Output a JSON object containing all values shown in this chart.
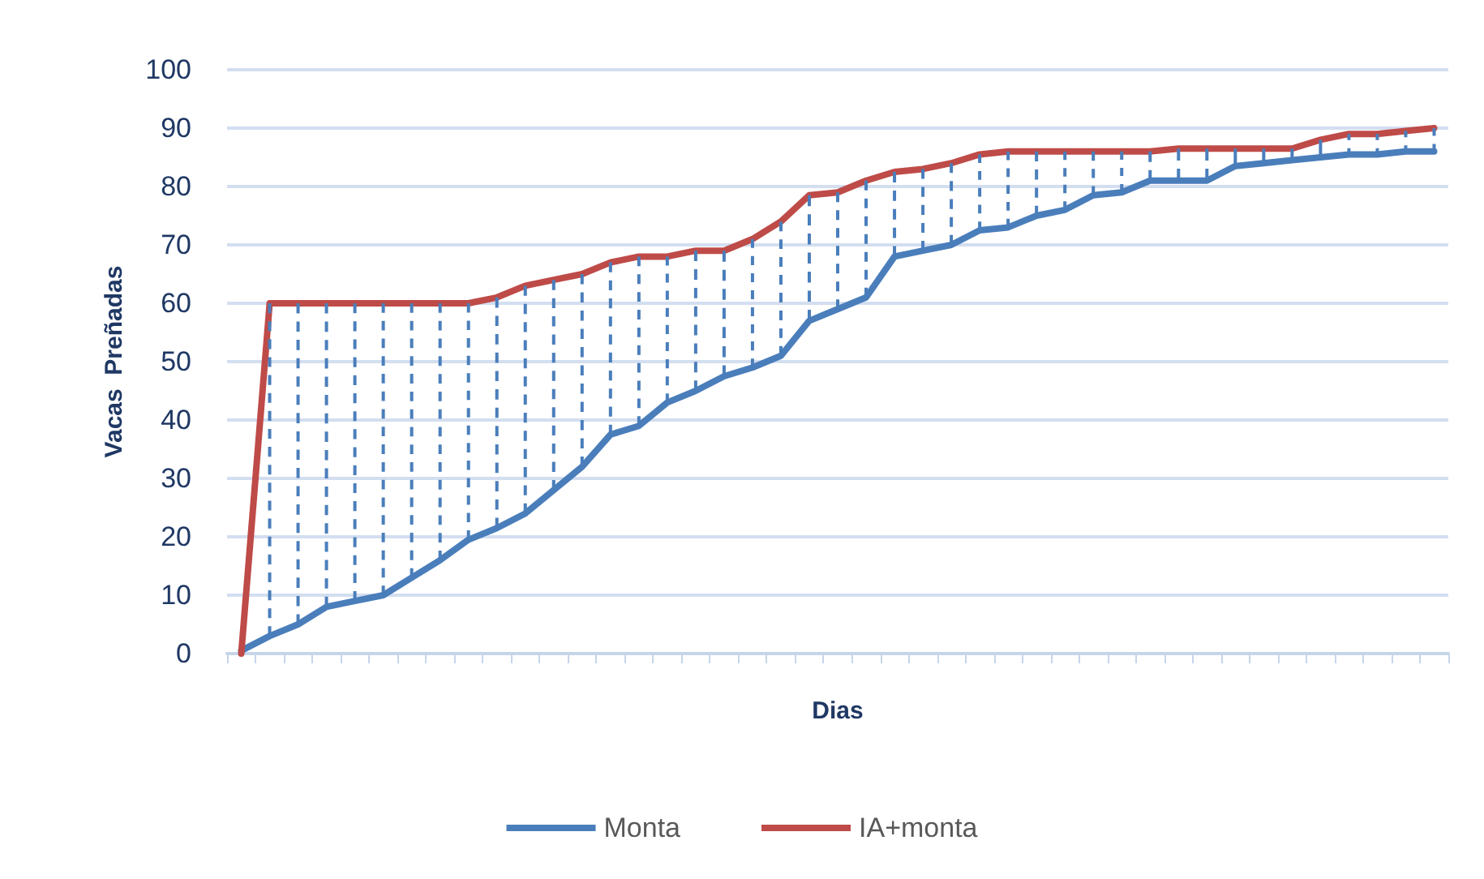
{
  "chart_data": {
    "type": "line",
    "xlabel": "Dias",
    "ylabel": "Vacas  Preñadas",
    "categories": [
      null,
      null,
      null,
      null,
      null,
      null,
      null,
      null,
      null,
      null,
      null,
      null,
      null,
      null,
      null,
      null,
      null,
      null,
      null,
      null,
      null,
      null,
      null,
      null,
      null,
      null,
      null,
      null,
      null,
      null,
      null,
      null,
      null,
      null,
      null,
      null,
      null,
      null,
      null,
      null,
      null,
      null,
      null
    ],
    "series": [
      {
        "name": "Monta",
        "color": "#4a7ebb",
        "values": [
          0.5,
          3,
          5,
          8,
          9,
          10,
          13,
          16,
          19.5,
          21.5,
          24,
          28,
          32,
          37.5,
          39,
          43,
          45,
          47.5,
          49,
          51,
          57,
          59,
          61,
          68,
          69,
          70,
          72.5,
          73,
          75,
          76,
          78.5,
          79,
          81,
          81,
          81,
          83.5,
          84,
          84.5,
          85,
          85.5,
          85.5,
          86,
          86
        ],
        "errors": [
          null,
          [
            3,
            60
          ],
          [
            5,
            60
          ],
          [
            8,
            60
          ],
          [
            9,
            60
          ],
          [
            10,
            60
          ],
          [
            13,
            60
          ],
          [
            16,
            60
          ],
          [
            19.5,
            60
          ],
          [
            21.5,
            61
          ],
          [
            24,
            63
          ],
          [
            28,
            64
          ],
          [
            32,
            65
          ],
          [
            37.5,
            67
          ],
          [
            39,
            68
          ],
          [
            43,
            68
          ],
          [
            45,
            69
          ],
          [
            47.5,
            69
          ],
          [
            49,
            71
          ],
          [
            51,
            74
          ],
          [
            57,
            78.5
          ],
          [
            59,
            79
          ],
          [
            61,
            81
          ],
          [
            68,
            82.5
          ],
          [
            69,
            83
          ],
          [
            70,
            84
          ],
          [
            72.5,
            85.5
          ],
          [
            73,
            86
          ],
          [
            75,
            86
          ],
          [
            76,
            86
          ],
          [
            78.5,
            86
          ],
          [
            79,
            86
          ],
          [
            81,
            86
          ],
          [
            81,
            86.5
          ],
          [
            81,
            86.5
          ],
          [
            83.5,
            86.5
          ],
          [
            84,
            86.5
          ],
          [
            84.5,
            86.5
          ],
          [
            85,
            88
          ],
          [
            85.5,
            89
          ],
          [
            85.5,
            89
          ],
          [
            86,
            89.5
          ],
          [
            86,
            90
          ]
        ]
      },
      {
        "name": "IA+monta",
        "color": "#be4b48",
        "values": [
          0,
          60,
          60,
          60,
          60,
          60,
          60,
          60,
          60,
          61,
          63,
          64,
          65,
          67,
          68,
          68,
          69,
          69,
          71,
          74,
          78.5,
          79,
          81,
          82.5,
          83,
          84,
          85.5,
          86,
          86,
          86,
          86,
          86,
          86,
          86.5,
          86.5,
          86.5,
          86.5,
          86.5,
          88,
          89,
          89,
          89.5,
          90
        ]
      }
    ],
    "ylim": [
      0,
      100
    ],
    "yticks": [
      0,
      10,
      20,
      30,
      40,
      50,
      60,
      70,
      80,
      90,
      100
    ],
    "grid": "y",
    "legend": "bottom",
    "marker": "none",
    "line_style": "solid"
  }
}
